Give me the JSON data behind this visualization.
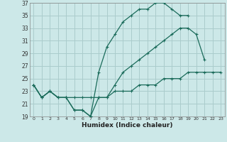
{
  "xlabel": "Humidex (Indice chaleur)",
  "bg_color": "#cce8e8",
  "grid_color": "#aacccc",
  "line_color": "#1a6b5a",
  "xlim": [
    -0.5,
    23.5
  ],
  "ylim": [
    19,
    37
  ],
  "xticks": [
    0,
    1,
    2,
    3,
    4,
    5,
    6,
    7,
    8,
    9,
    10,
    11,
    12,
    13,
    14,
    15,
    16,
    17,
    18,
    19,
    20,
    21,
    22,
    23
  ],
  "yticks": [
    19,
    21,
    23,
    25,
    27,
    29,
    31,
    33,
    35,
    37
  ],
  "series_max": [
    24,
    22,
    23,
    22,
    22,
    20,
    20,
    19,
    26,
    30,
    32,
    34,
    35,
    36,
    36,
    37,
    37,
    36,
    35,
    35,
    null,
    null,
    null,
    null
  ],
  "series_mid": [
    24,
    22,
    23,
    22,
    22,
    20,
    20,
    19,
    22,
    22,
    24,
    26,
    27,
    28,
    29,
    30,
    31,
    32,
    33,
    33,
    32,
    28,
    null,
    null
  ],
  "series_min": [
    24,
    22,
    23,
    22,
    22,
    22,
    22,
    22,
    22,
    22,
    23,
    23,
    23,
    24,
    24,
    24,
    25,
    25,
    25,
    26,
    26,
    26,
    26,
    26
  ]
}
